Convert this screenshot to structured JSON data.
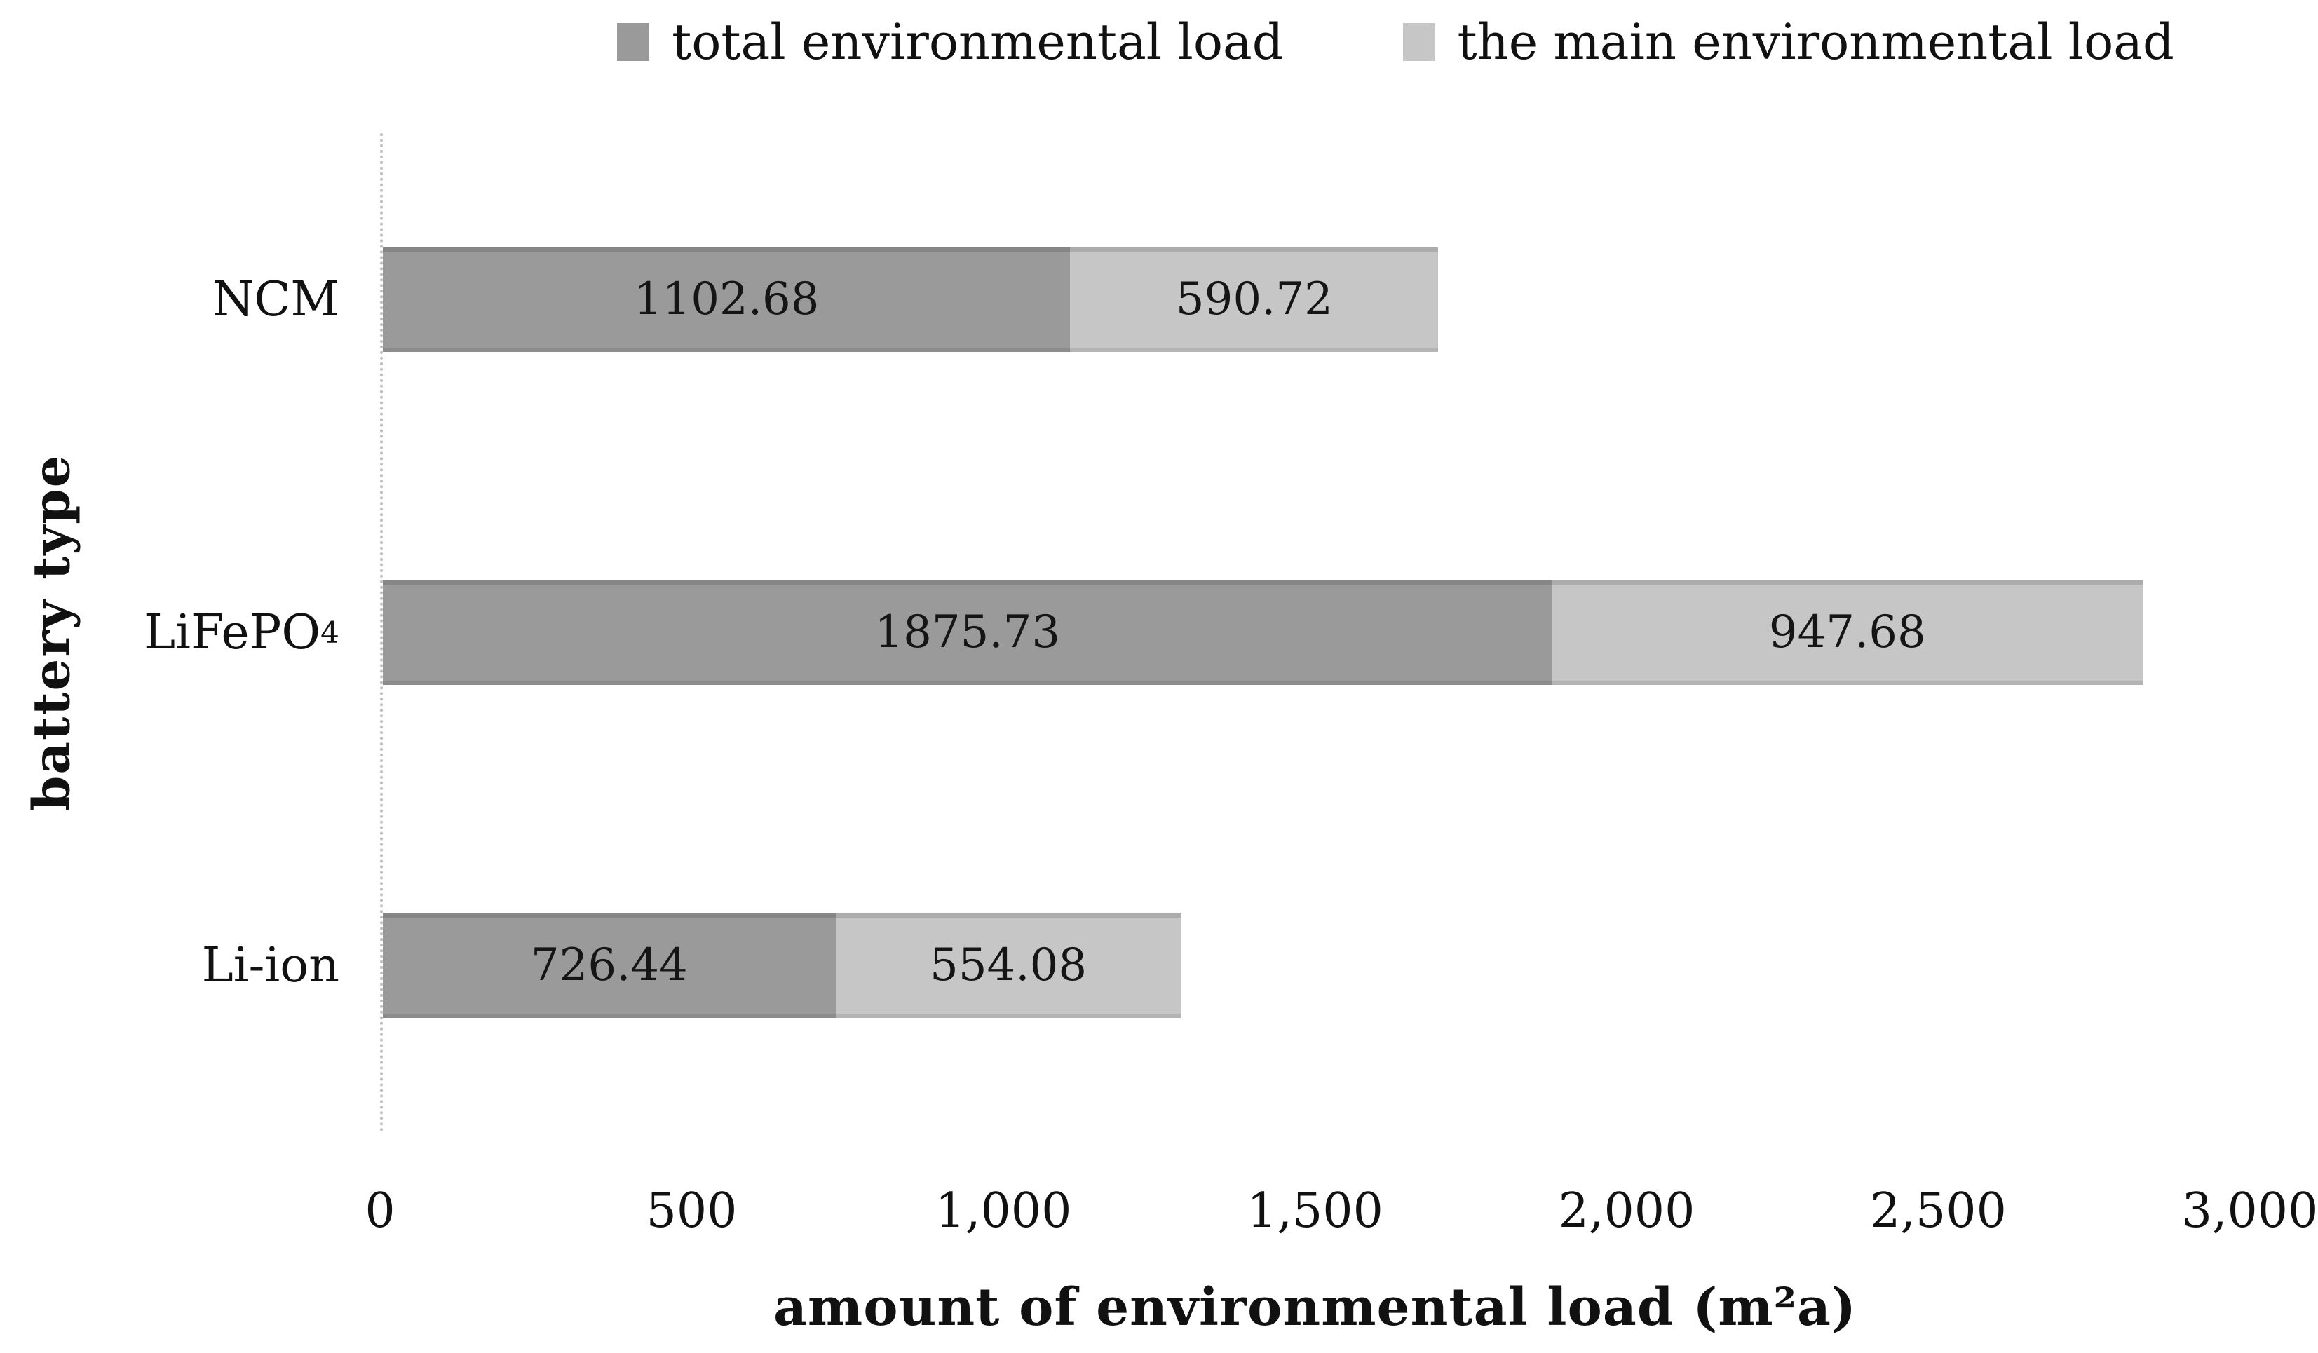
{
  "figure": {
    "background": "#ffffff"
  },
  "legend": {
    "items": [
      {
        "label": "total environmental load",
        "swatch_color": "#9a9a9a"
      },
      {
        "label": "the main environmental load",
        "swatch_color": "#c6c6c6"
      }
    ]
  },
  "chart_data": {
    "type": "bar",
    "orientation": "horizontal",
    "stacked": true,
    "title": "",
    "xlabel": "amount of environmental load (m²a)",
    "ylabel": "battery type",
    "xlim": [
      0,
      3000
    ],
    "grid": false,
    "legend_position": "top",
    "xticks": [
      {
        "label": "0",
        "value": 0
      },
      {
        "label": "500",
        "value": 500
      },
      {
        "label": "1,000",
        "value": 1000
      },
      {
        "label": "1,500",
        "value": 1500
      },
      {
        "label": "2,000",
        "value": 2000
      },
      {
        "label": "2,500",
        "value": 2500
      },
      {
        "label": "3,000",
        "value": 3000
      }
    ],
    "categories": [
      {
        "text": "NCM",
        "sub": ""
      },
      {
        "text": "LiFePO",
        "sub": "4"
      },
      {
        "text": "Li-ion",
        "sub": ""
      }
    ],
    "series": [
      {
        "name": "total environmental load",
        "color": "#9a9a9a",
        "values": [
          1102.68,
          1875.73,
          726.44
        ],
        "labels": [
          "1102.68",
          "1875.73",
          "726.44"
        ]
      },
      {
        "name": "the main environmental load",
        "color": "#c6c6c6",
        "values": [
          590.72,
          947.68,
          554.08
        ],
        "labels": [
          "590.72",
          "947.68",
          "554.08"
        ]
      }
    ]
  },
  "colors": {
    "axis_line": "#bdbdbd",
    "text": "#111111"
  }
}
